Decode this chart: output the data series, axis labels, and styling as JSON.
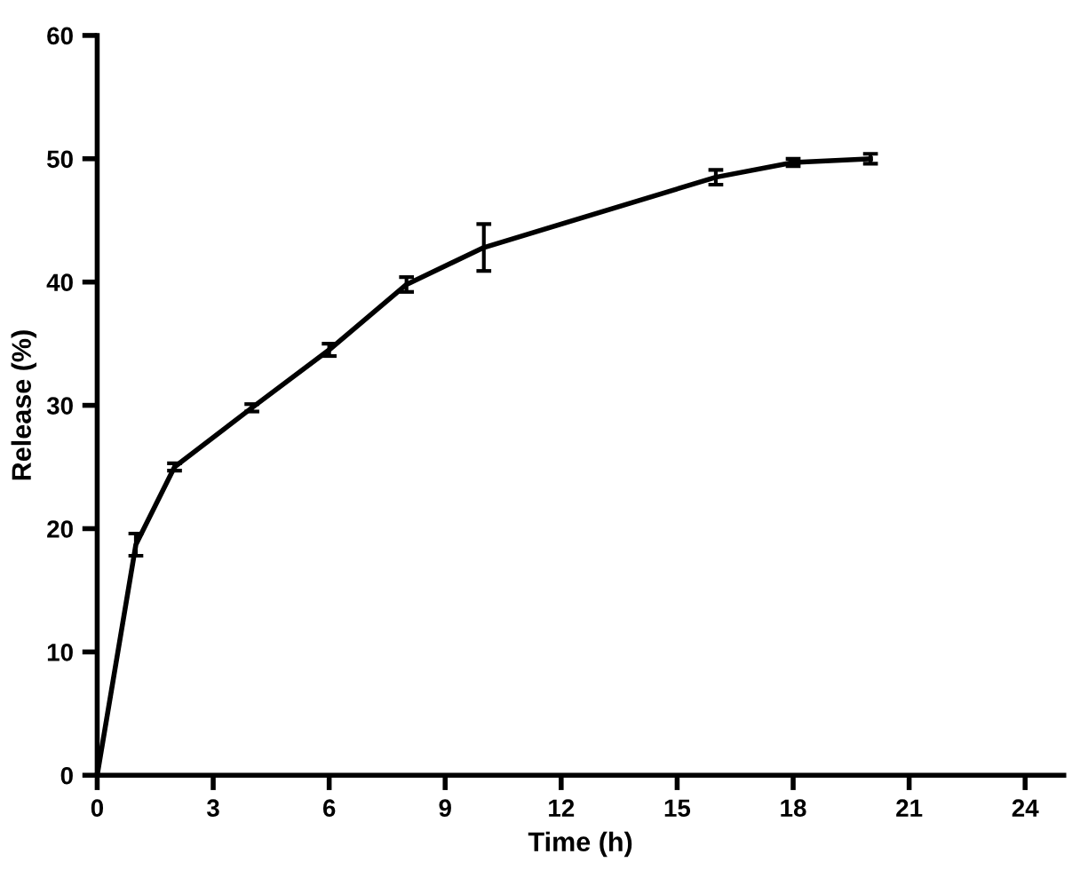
{
  "chart_data": {
    "type": "line",
    "xlabel": "Time (h)",
    "ylabel": "Release (%)",
    "x": [
      0,
      1,
      2,
      4,
      6,
      8,
      10,
      16,
      18,
      20
    ],
    "series": [
      {
        "color": "#000000",
        "values": [
          0,
          18.7,
          25,
          29.8,
          34.5,
          39.8,
          42.8,
          48.5,
          49.7,
          50
        ],
        "errors": [
          null,
          0.9,
          0.3,
          0.3,
          0.5,
          0.6,
          1.9,
          0.6,
          0.3,
          0.4
        ]
      }
    ],
    "xlim": [
      0,
      25
    ],
    "ylim": [
      0,
      60
    ],
    "xticks": [
      0,
      3,
      6,
      9,
      12,
      15,
      18,
      21,
      24
    ],
    "yticks": [
      0,
      10,
      20,
      30,
      40,
      50,
      60
    ],
    "grid": false,
    "legend": false,
    "marker": "none",
    "line_style": "solid"
  }
}
